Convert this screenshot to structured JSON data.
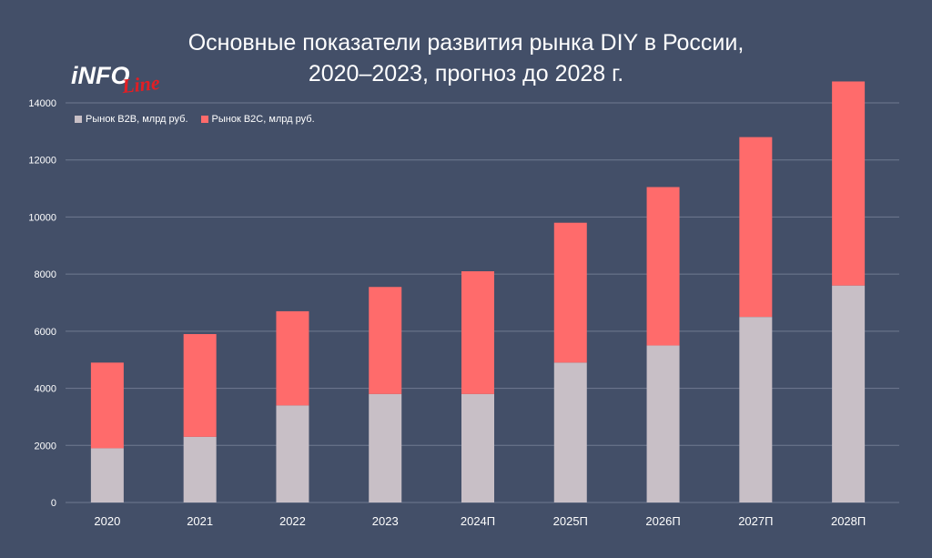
{
  "logo": {
    "main": "iNFO",
    "sub": "Line"
  },
  "chart_data": {
    "type": "bar",
    "stacked": true,
    "title_lines": [
      "Основные показатели развития рынка DIY в России,",
      "2020–2023, прогноз до 2028 г."
    ],
    "categories": [
      "2020",
      "2021",
      "2022",
      "2023",
      "2024П",
      "2025П",
      "2026П",
      "2027П",
      "2028П"
    ],
    "series": [
      {
        "name": "Рынок B2B, млрд руб.",
        "color": "#c8bfc6",
        "values": [
          1900,
          2300,
          3400,
          3800,
          3800,
          4900,
          5500,
          6500,
          7600
        ]
      },
      {
        "name": "Рынок B2C, млрд руб.",
        "color": "#ff6b6b",
        "values": [
          3000,
          3600,
          3300,
          3750,
          4300,
          4900,
          5550,
          6300,
          7150
        ]
      }
    ],
    "ylim": [
      0,
      14000
    ],
    "yticks": [
      0,
      2000,
      4000,
      6000,
      8000,
      10000,
      12000,
      14000
    ],
    "grid": true,
    "legend_position": "top-left",
    "xlabel": "",
    "ylabel": ""
  }
}
